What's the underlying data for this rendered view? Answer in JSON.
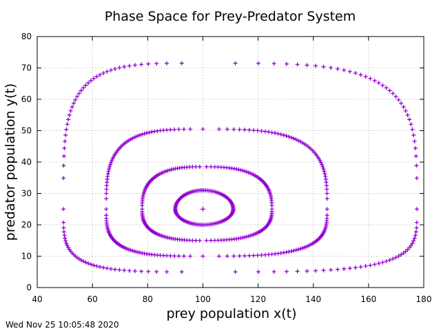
{
  "chart_data": {
    "type": "scatter",
    "title": "Phase Space for Prey-Predator System",
    "xlabel": "prey population x(t)",
    "ylabel": "predator population y(t)",
    "xlim": [
      40,
      180
    ],
    "ylim": [
      0,
      80
    ],
    "xticks": [
      40,
      60,
      80,
      100,
      120,
      140,
      160,
      180
    ],
    "yticks": [
      0,
      10,
      20,
      30,
      40,
      50,
      60,
      70,
      80
    ],
    "grid": true,
    "marker": "plus",
    "color": "#9400d3",
    "equilibrium": {
      "x": 100,
      "y": 25
    },
    "orbits": [
      {
        "xmin": 90,
        "xmax": 111,
        "ymin": 20,
        "ymax": 31
      },
      {
        "xmin": 78,
        "xmax": 125,
        "ymin": 15,
        "ymax": 38.5
      },
      {
        "xmin": 65,
        "xmax": 145,
        "ymin": 10,
        "ymax": 50.5
      },
      {
        "xmin": 49.5,
        "xmax": 177.5,
        "ymin": 5,
        "ymax": 71.5
      }
    ]
  },
  "footer": {
    "timestamp": "Wed Nov 25 10:05:48 2020"
  }
}
